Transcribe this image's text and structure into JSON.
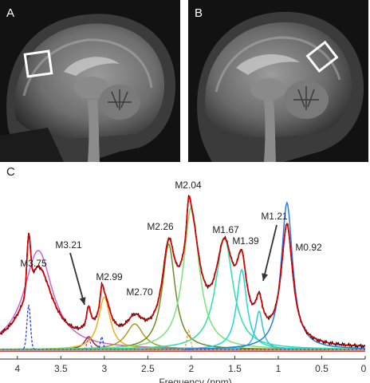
{
  "panels": {
    "a": {
      "letter": "A"
    },
    "b": {
      "letter": "B"
    },
    "c": {
      "letter": "C"
    }
  },
  "chart_data": {
    "type": "line",
    "xlabel": "Frequency (ppm)",
    "xlim": [
      4.2,
      0
    ],
    "xticks": [
      "4",
      "3.5",
      "3",
      "2.5",
      "2",
      "1.5",
      "1",
      "0.5",
      "0"
    ],
    "peak_labels": [
      "M3.75",
      "M3.21",
      "M2.99",
      "M2.70",
      "M2.26",
      "M2.04",
      "M1.67",
      "M1.39",
      "M1.21",
      "M0.92"
    ],
    "components": [
      {
        "name": "M3.75",
        "center": 3.76,
        "width": 0.2,
        "amplitude": 0.62,
        "color": "#cc66cc"
      },
      {
        "name": "M3.21",
        "center": 3.18,
        "width": 0.06,
        "amplitude": 0.08,
        "color": "#8b2c3c"
      },
      {
        "name": "M2.99",
        "center": 3.0,
        "width": 0.08,
        "amplitude": 0.33,
        "color": "#f0b020"
      },
      {
        "name": "M2.70",
        "center": 2.65,
        "width": 0.12,
        "amplitude": 0.16,
        "color": "#a89a20"
      },
      {
        "name": "M2.26",
        "center": 2.26,
        "width": 0.09,
        "amplitude": 0.66,
        "color": "#6b8e23"
      },
      {
        "name": "M2.04",
        "center": 2.0,
        "width": 0.11,
        "amplitude": 0.89,
        "color": "#7be37b"
      },
      {
        "name": "M1.67",
        "center": 1.62,
        "width": 0.12,
        "amplitude": 0.7,
        "color": "#2ee0a8"
      },
      {
        "name": "M1.39",
        "center": 1.42,
        "width": 0.07,
        "amplitude": 0.5,
        "color": "#22d8d8"
      },
      {
        "name": "M1.21",
        "center": 1.22,
        "width": 0.05,
        "amplitude": 0.24,
        "color": "#2fc2ea"
      },
      {
        "name": "M0.92",
        "center": 0.9,
        "width": 0.08,
        "amplitude": 0.92,
        "color": "#2a7de1"
      }
    ],
    "dashed_components": [
      {
        "center": 3.87,
        "width": 0.02,
        "amplitude": 0.28,
        "color": "#2040e0"
      },
      {
        "center": 3.03,
        "width": 0.015,
        "amplitude": 0.08,
        "color": "#2040e0"
      },
      {
        "center": 3.18,
        "width": 0.02,
        "amplitude": 0.07,
        "color": "#d94080"
      },
      {
        "center": 2.03,
        "width": 0.02,
        "amplitude": 0.12,
        "color": "#f0a020"
      }
    ],
    "fit_color": "#e00000",
    "data_color": "#000000",
    "baseline": 0.02
  }
}
